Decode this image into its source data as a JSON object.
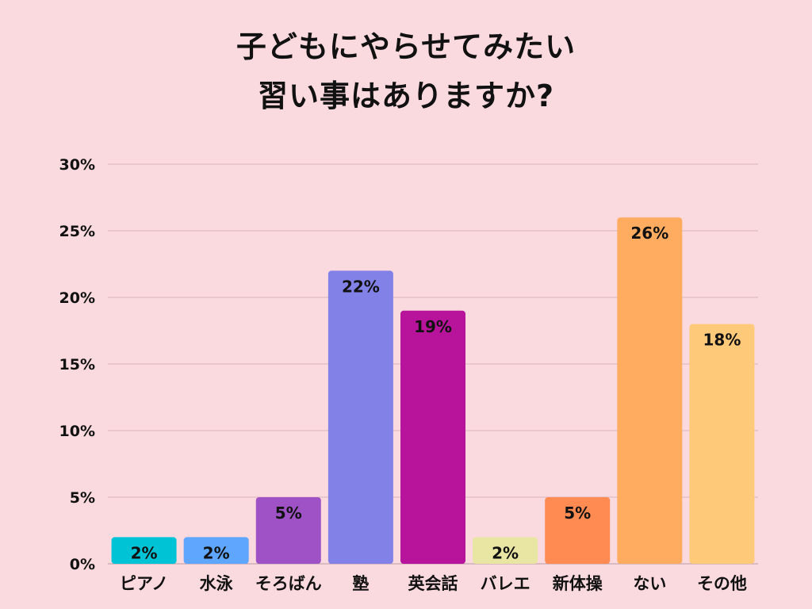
{
  "chart_data": {
    "type": "bar",
    "title_lines": [
      "子どもにやらせてみたい",
      "習い事はありますか?"
    ],
    "categories": [
      "ピアノ",
      "水泳",
      "そろばん",
      "塾",
      "英会話",
      "バレエ",
      "新体操",
      "ない",
      "その他"
    ],
    "values": [
      2,
      2,
      5,
      22,
      19,
      2,
      5,
      26,
      18
    ],
    "value_labels": [
      "2%",
      "2%",
      "5%",
      "22%",
      "19%",
      "2%",
      "5%",
      "26%",
      "18%"
    ],
    "colors": [
      "#00c4d6",
      "#5fa6ff",
      "#9e52c6",
      "#8281e8",
      "#b8139b",
      "#e9e6a4",
      "#ff8b52",
      "#ffac60",
      "#ffc97a"
    ],
    "ylim": [
      0,
      30
    ],
    "yticks": [
      0,
      5,
      10,
      15,
      20,
      25,
      30
    ],
    "ytick_labels": [
      "0%",
      "5%",
      "10%",
      "15%",
      "20%",
      "25%",
      "30%"
    ],
    "grid": true,
    "xlabel": "",
    "ylabel": ""
  }
}
